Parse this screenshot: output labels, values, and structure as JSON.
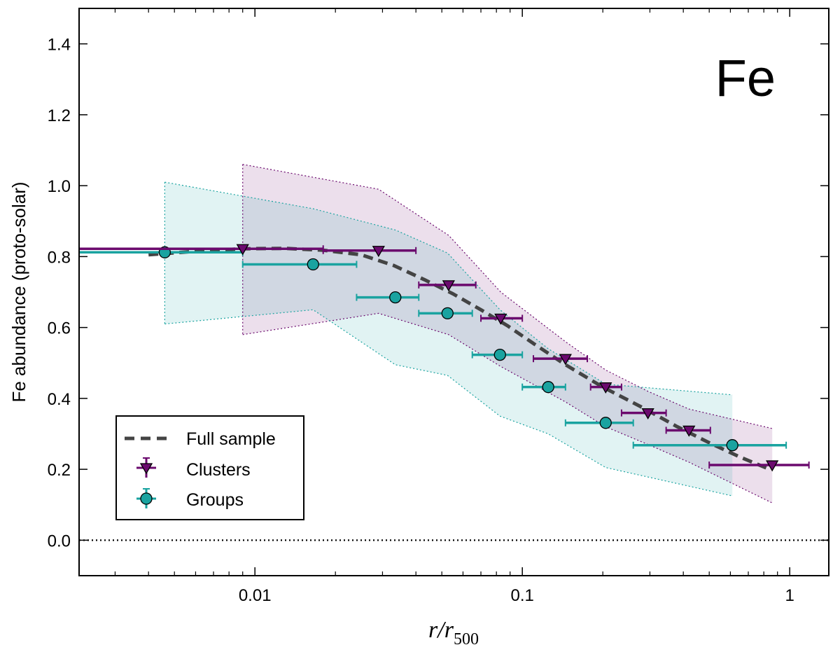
{
  "chart_data": {
    "type": "scatter",
    "title": "",
    "annotation": "Fe",
    "xlabel": "r/r",
    "xlabel_subscript": "500",
    "ylabel": "Fe abundance (proto-solar)",
    "xscale": "log",
    "xlim": [
      0.0022,
      1.4
    ],
    "ylim": [
      -0.1,
      1.5
    ],
    "xticks": [
      {
        "value": 0.01,
        "label": "0.01"
      },
      {
        "value": 0.1,
        "label": "0.1"
      },
      {
        "value": 1,
        "label": "1"
      }
    ],
    "yticks": [
      {
        "value": 0.0,
        "label": "0.0"
      },
      {
        "value": 0.2,
        "label": "0.2"
      },
      {
        "value": 0.4,
        "label": "0.4"
      },
      {
        "value": 0.6,
        "label": "0.6"
      },
      {
        "value": 0.8,
        "label": "0.8"
      },
      {
        "value": 1.0,
        "label": "1.0"
      },
      {
        "value": 1.2,
        "label": "1.2"
      },
      {
        "value": 1.4,
        "label": "1.4"
      }
    ],
    "zero_line": 0.0,
    "legend_position": "lower-left",
    "colors": {
      "clusters": "#6b0a6e",
      "groups": "#1aa3a0",
      "full": "#444444",
      "clusters_band": "#f0d8f0",
      "groups_band": "#c8ecec",
      "overlap_band": "#d8d8ea"
    },
    "full_sample": {
      "name": "Full sample",
      "x": [
        0.004,
        0.006,
        0.009,
        0.013,
        0.018,
        0.025,
        0.033,
        0.043,
        0.055,
        0.07,
        0.088,
        0.11,
        0.145,
        0.2,
        0.28,
        0.38,
        0.5,
        0.65,
        0.84
      ],
      "y": [
        0.805,
        0.815,
        0.822,
        0.823,
        0.818,
        0.805,
        0.775,
        0.735,
        0.695,
        0.65,
        0.605,
        0.555,
        0.495,
        0.432,
        0.375,
        0.32,
        0.275,
        0.235,
        0.2
      ]
    },
    "series": [
      {
        "name": "Clusters",
        "marker": "triangle-down",
        "x": [
          0.009,
          0.029,
          0.053,
          0.083,
          0.145,
          0.205,
          0.295,
          0.42,
          0.86
        ],
        "y": [
          0.822,
          0.817,
          0.72,
          0.626,
          0.512,
          0.432,
          0.359,
          0.31,
          0.212
        ],
        "xerr_low": [
          0.0022,
          0.018,
          0.041,
          0.07,
          0.11,
          0.18,
          0.235,
          0.345,
          0.5
        ],
        "xerr_high": [
          0.018,
          0.04,
          0.067,
          0.1,
          0.175,
          0.235,
          0.345,
          0.505,
          1.18
        ],
        "band_x": [
          0.009,
          0.029,
          0.053,
          0.083,
          0.145,
          0.205,
          0.295,
          0.42,
          0.86
        ],
        "band_upper": [
          1.06,
          0.99,
          0.86,
          0.7,
          0.56,
          0.48,
          0.42,
          0.37,
          0.315
        ],
        "band_lower": [
          0.58,
          0.64,
          0.58,
          0.49,
          0.39,
          0.32,
          0.27,
          0.22,
          0.105
        ]
      },
      {
        "name": "Groups",
        "marker": "circle",
        "x": [
          0.0046,
          0.0165,
          0.0335,
          0.0525,
          0.0825,
          0.125,
          0.205,
          0.61
        ],
        "y": [
          0.812,
          0.778,
          0.685,
          0.64,
          0.523,
          0.432,
          0.331,
          0.268
        ],
        "xerr_low": [
          0.0022,
          0.009,
          0.024,
          0.041,
          0.065,
          0.1,
          0.145,
          0.26
        ],
        "xerr_high": [
          0.009,
          0.024,
          0.041,
          0.065,
          0.1,
          0.145,
          0.26,
          0.97
        ],
        "band_x": [
          0.0046,
          0.0165,
          0.0335,
          0.0525,
          0.0825,
          0.125,
          0.205,
          0.61
        ],
        "band_upper": [
          1.01,
          0.935,
          0.875,
          0.81,
          0.65,
          0.54,
          0.44,
          0.41
        ],
        "band_lower": [
          0.61,
          0.65,
          0.495,
          0.465,
          0.35,
          0.3,
          0.205,
          0.125
        ]
      }
    ]
  }
}
